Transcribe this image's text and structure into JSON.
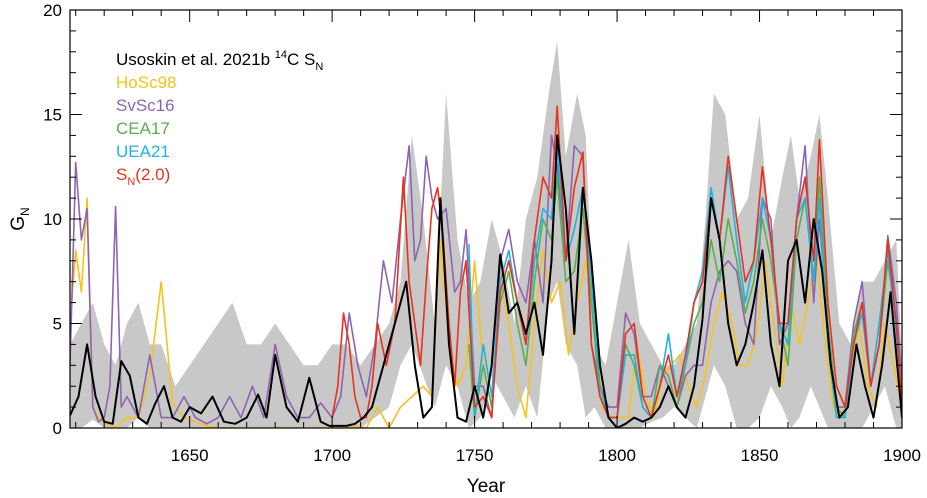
{
  "chart_data": {
    "type": "line",
    "xlabel": "Year",
    "ylabel_main": "G",
    "ylabel_sub": "N",
    "xlim": [
      1608,
      1900
    ],
    "ylim": [
      0,
      20
    ],
    "x_ticks": [
      1650,
      1700,
      1750,
      1800,
      1850,
      1900
    ],
    "y_ticks": [
      0,
      5,
      10,
      15,
      20
    ],
    "grid": false,
    "legend_placement": "top-left",
    "band": {
      "color": "#c8c8c8",
      "x": [
        1608,
        1612,
        1616,
        1620,
        1624,
        1628,
        1632,
        1636,
        1640,
        1645,
        1650,
        1655,
        1660,
        1665,
        1670,
        1675,
        1680,
        1685,
        1690,
        1695,
        1700,
        1705,
        1710,
        1715,
        1720,
        1724,
        1728,
        1732,
        1736,
        1740,
        1744,
        1748,
        1752,
        1756,
        1760,
        1764,
        1768,
        1772,
        1776,
        1779,
        1782,
        1786,
        1789,
        1792,
        1796,
        1800,
        1804,
        1808,
        1812,
        1816,
        1820,
        1824,
        1828,
        1831,
        1834,
        1838,
        1842,
        1846,
        1850,
        1854,
        1858,
        1861,
        1864,
        1868,
        1871,
        1874,
        1878,
        1882,
        1886,
        1890,
        1894,
        1898,
        1900
      ],
      "lower": [
        0,
        0,
        0.4,
        0,
        0,
        0,
        0.5,
        0,
        0,
        0,
        0,
        0,
        0,
        0,
        0,
        0,
        0,
        0,
        0,
        0,
        0,
        0,
        0,
        0.5,
        1,
        3,
        4,
        2.5,
        1,
        3,
        2,
        0,
        0.5,
        2.5,
        1.5,
        0.5,
        2,
        0.5,
        6,
        7,
        4,
        3,
        0.5,
        1,
        0,
        0,
        0,
        0,
        0.3,
        0.5,
        1,
        0.5,
        0,
        1.5,
        3,
        2,
        0,
        0,
        0.5,
        2,
        1,
        0,
        0.5,
        2,
        1,
        0,
        0,
        0,
        0,
        1,
        2,
        0,
        0
      ],
      "upper": [
        4,
        5,
        6,
        4,
        3,
        5,
        6,
        4,
        4,
        2,
        3,
        4,
        5,
        6,
        4,
        4,
        5,
        4,
        3,
        3,
        4,
        4,
        3,
        4,
        5,
        7,
        14,
        10,
        5,
        16,
        9,
        6,
        7,
        10,
        8,
        5,
        10,
        12,
        16,
        18.5,
        13,
        16,
        14,
        4,
        3,
        6,
        9,
        5,
        4,
        3,
        3,
        4,
        5,
        10,
        16,
        15,
        10,
        11,
        15,
        9,
        12,
        14,
        11,
        13,
        15,
        11,
        5,
        4,
        7,
        7,
        8,
        9,
        3
      ]
    },
    "series": [
      {
        "name": "Usoskin et al. 2021b ",
        "name_sup": "14",
        "name_rest": "C S",
        "name_sub": "N",
        "color": "#000000",
        "x": [
          1608,
          1611,
          1614,
          1617,
          1620,
          1623,
          1626,
          1629,
          1632,
          1635,
          1638,
          1641,
          1644,
          1647,
          1650,
          1654,
          1658,
          1662,
          1666,
          1670,
          1674,
          1677,
          1680,
          1684,
          1688,
          1692,
          1696,
          1699,
          1702,
          1705,
          1708,
          1711,
          1714,
          1717,
          1720,
          1723,
          1726,
          1729,
          1732,
          1735,
          1738,
          1741,
          1744,
          1747,
          1750,
          1753,
          1756,
          1759,
          1762,
          1765,
          1768,
          1771,
          1774,
          1777,
          1779,
          1782,
          1785,
          1788,
          1791,
          1794,
          1797,
          1800,
          1803,
          1806,
          1809,
          1812,
          1815,
          1818,
          1821,
          1824,
          1827,
          1830,
          1833,
          1836,
          1839,
          1842,
          1845,
          1848,
          1851,
          1854,
          1857,
          1860,
          1863,
          1866,
          1869,
          1872,
          1875,
          1878,
          1881,
          1884,
          1887,
          1890,
          1893,
          1896,
          1900
        ],
        "y": [
          0.6,
          1.5,
          4,
          1.5,
          0.3,
          0.2,
          3.2,
          2.5,
          0.5,
          0.2,
          1.2,
          2,
          0.5,
          0.3,
          1,
          0.7,
          1.5,
          0.3,
          0.2,
          0.5,
          1.6,
          0.5,
          3.5,
          1,
          0.3,
          2.4,
          0.3,
          0.1,
          0.1,
          0.1,
          0.2,
          0.5,
          1,
          2.5,
          4,
          5.5,
          7,
          3,
          0.5,
          1,
          11,
          4,
          0.5,
          0.3,
          2,
          0.5,
          3,
          8.3,
          5.5,
          6,
          4.5,
          6,
          3.5,
          8,
          14,
          10.5,
          4.5,
          11.5,
          8,
          3,
          0.5,
          0,
          0.2,
          0.5,
          0.3,
          0.5,
          1,
          2,
          1,
          0.5,
          2,
          5.2,
          11,
          9,
          5,
          3,
          4,
          6,
          8.5,
          4,
          2,
          8,
          9,
          6,
          10,
          7.5,
          3,
          0.5,
          1,
          4,
          2,
          0.5,
          3,
          6.5,
          0.5
        ]
      },
      {
        "name": "HoSc98",
        "color": "#f7c21a",
        "x": [
          1608,
          1610,
          1612,
          1614,
          1616,
          1618,
          1620,
          1624,
          1628,
          1632,
          1636,
          1640,
          1644,
          1648,
          1652,
          1656,
          1660,
          1664,
          1668,
          1672,
          1676,
          1680,
          1684,
          1688,
          1692,
          1696,
          1700,
          1704,
          1708,
          1712,
          1716,
          1720,
          1724,
          1728,
          1732,
          1735,
          1738,
          1741,
          1744,
          1747,
          1750,
          1753,
          1756,
          1759,
          1762,
          1765,
          1768,
          1771,
          1774,
          1777,
          1780,
          1783,
          1786,
          1789,
          1792,
          1795,
          1798,
          1801,
          1804,
          1807,
          1810,
          1813,
          1816,
          1819,
          1822,
          1825,
          1828,
          1831,
          1834,
          1837,
          1840,
          1843,
          1846,
          1849,
          1852,
          1855,
          1858,
          1861,
          1864,
          1867,
          1870,
          1873,
          1876,
          1879,
          1882,
          1885,
          1888,
          1891,
          1894,
          1897,
          1900
        ],
        "y": [
          5,
          8.5,
          6.5,
          11,
          1,
          0.5,
          0.2,
          0,
          0.5,
          0.5,
          2.5,
          7,
          1.2,
          0.5,
          0.3,
          0.1,
          0,
          0,
          0,
          0,
          0,
          0,
          0,
          0,
          0,
          0,
          0,
          0,
          0.1,
          0,
          1,
          0,
          1,
          1.5,
          2,
          1.5,
          9,
          4,
          2,
          3,
          8,
          3,
          1,
          7,
          5,
          2,
          0.5,
          5,
          8.5,
          6,
          7,
          3.5,
          6,
          8,
          6,
          1,
          0.5,
          0.5,
          0.5,
          4,
          1.5,
          0.5,
          2.5,
          3,
          3.5,
          2,
          1,
          2.5,
          5,
          6.5,
          5.2,
          3,
          3,
          4.5,
          8,
          5,
          2,
          6,
          4,
          6,
          8.5,
          4,
          1,
          0.5,
          3,
          5,
          2,
          1,
          5,
          3,
          1
        ]
      },
      {
        "name": "SvSc16",
        "color": "#8e64b0",
        "x": [
          1608,
          1610,
          1612,
          1614,
          1616,
          1618,
          1620,
          1622,
          1624,
          1626,
          1628,
          1632,
          1636,
          1640,
          1644,
          1648,
          1652,
          1656,
          1660,
          1664,
          1668,
          1672,
          1676,
          1680,
          1684,
          1688,
          1692,
          1696,
          1700,
          1703,
          1706,
          1709,
          1712,
          1715,
          1718,
          1721,
          1724,
          1727,
          1729,
          1731,
          1733,
          1735,
          1737,
          1740,
          1743,
          1745,
          1747,
          1750,
          1753,
          1756,
          1759,
          1762,
          1765,
          1768,
          1771,
          1774,
          1777,
          1779,
          1782,
          1785,
          1788,
          1791,
          1794,
          1797,
          1800,
          1803,
          1806,
          1809,
          1812,
          1815,
          1818,
          1821,
          1824,
          1827,
          1830,
          1833,
          1836,
          1839,
          1842,
          1845,
          1848,
          1851,
          1854,
          1857,
          1860,
          1863,
          1866,
          1869,
          1871,
          1874,
          1877,
          1880,
          1883,
          1886,
          1889,
          1892,
          1895,
          1898,
          1900
        ],
        "y": [
          3,
          12.7,
          9,
          10.5,
          1,
          0.3,
          0.5,
          2,
          10.6,
          1,
          1.5,
          0.5,
          3.5,
          0.5,
          0.5,
          1.5,
          0.5,
          0.2,
          0.5,
          1.5,
          0.5,
          2,
          0.5,
          4,
          1.5,
          0.5,
          0.5,
          1.2,
          0.5,
          1.5,
          5.5,
          3,
          1.5,
          4,
          8,
          6,
          10,
          13.5,
          8,
          9,
          13,
          11,
          10,
          10.5,
          6.5,
          7,
          9.5,
          2,
          2,
          0.5,
          8,
          9.5,
          7,
          6,
          9,
          6,
          14,
          12.5,
          8,
          13.5,
          13,
          4,
          2,
          1,
          1,
          5.5,
          4.5,
          1.5,
          1.5,
          3,
          2,
          1,
          2.5,
          3,
          3,
          6,
          7.5,
          8,
          7.5,
          5,
          4,
          11,
          10,
          4,
          5,
          10,
          13.5,
          6,
          10,
          5,
          1,
          1,
          5,
          7,
          2,
          4,
          9.2,
          6,
          2
        ]
      },
      {
        "name": "CEA17",
        "color": "#55b04e",
        "x": [
          1748,
          1750,
          1753,
          1756,
          1759,
          1762,
          1765,
          1768,
          1771,
          1774,
          1777,
          1779,
          1782,
          1785,
          1788,
          1791,
          1794,
          1797,
          1800,
          1803,
          1806,
          1809,
          1812,
          1815,
          1818,
          1821,
          1824,
          1827,
          1830,
          1833,
          1836,
          1839,
          1842,
          1845,
          1848,
          1851,
          1854,
          1857,
          1860,
          1863,
          1866,
          1869,
          1871,
          1874,
          1877,
          1880,
          1883,
          1886,
          1889,
          1892,
          1895,
          1898,
          1900
        ],
        "y": [
          4,
          0.5,
          3,
          1,
          6,
          7.5,
          5,
          3,
          7,
          10,
          9,
          12,
          7,
          7.5,
          10.5,
          6,
          1.5,
          0.5,
          0.5,
          4,
          3,
          1,
          0.5,
          3,
          2.5,
          1,
          3,
          5,
          6,
          9,
          7,
          10,
          8,
          5.5,
          7,
          10,
          8,
          5,
          3,
          9,
          11,
          7,
          12,
          5,
          1,
          0.5,
          4.5,
          6,
          2,
          4,
          8,
          5,
          1.5
        ]
      },
      {
        "name": "UEA21",
        "color": "#1fb2e4",
        "x": [
          1748,
          1750,
          1753,
          1756,
          1759,
          1762,
          1765,
          1768,
          1771,
          1774,
          1777,
          1779,
          1782,
          1785,
          1788,
          1791,
          1794,
          1797,
          1800,
          1803,
          1806,
          1809,
          1812,
          1815,
          1818,
          1821,
          1824,
          1827,
          1830,
          1833,
          1836,
          1839,
          1842,
          1845,
          1848,
          1851,
          1854,
          1857,
          1860,
          1863,
          1866,
          1869,
          1871,
          1874,
          1877,
          1880,
          1883,
          1886,
          1889,
          1892,
          1895,
          1898,
          1900
        ],
        "y": [
          8.8,
          0.5,
          4,
          1.5,
          7,
          8.5,
          6,
          4,
          8,
          10.5,
          10,
          13.5,
          8,
          9.5,
          11.5,
          7,
          2,
          0.5,
          0.5,
          3.5,
          3.5,
          1,
          0.5,
          2,
          4.5,
          1.5,
          3,
          6,
          7.5,
          11.5,
          9,
          12.5,
          9,
          6,
          8,
          11,
          9,
          5,
          4,
          10,
          11,
          7,
          11,
          4,
          0.5,
          0.5,
          4,
          5.5,
          2,
          5,
          8.5,
          4.5,
          1.5
        ]
      },
      {
        "name": "S",
        "name_sub": "N",
        "name_rest": "(2.0)",
        "color": "#e8321e",
        "x": [
          1700,
          1702,
          1704,
          1706,
          1708,
          1710,
          1712,
          1714,
          1716,
          1719,
          1722,
          1725,
          1727,
          1729,
          1731,
          1733,
          1735,
          1737,
          1739,
          1741,
          1743,
          1745,
          1747,
          1750,
          1753,
          1756,
          1759,
          1762,
          1765,
          1768,
          1771,
          1774,
          1777,
          1779,
          1782,
          1785,
          1788,
          1791,
          1794,
          1797,
          1800,
          1803,
          1806,
          1809,
          1812,
          1815,
          1818,
          1821,
          1824,
          1827,
          1830,
          1833,
          1836,
          1839,
          1842,
          1845,
          1848,
          1851,
          1854,
          1857,
          1860,
          1863,
          1866,
          1869,
          1871,
          1874,
          1877,
          1880,
          1883,
          1886,
          1889,
          1892,
          1895,
          1898,
          1900
        ],
        "y": [
          0.5,
          2,
          5.5,
          4,
          1.5,
          0.5,
          0.5,
          2,
          5,
          3,
          5,
          12,
          7,
          5,
          3,
          7,
          10.5,
          11.5,
          9,
          5,
          2,
          6.5,
          8,
          1,
          1.5,
          0.5,
          6.5,
          8,
          6,
          4,
          9,
          12,
          11,
          15.4,
          8,
          11.5,
          13.2,
          4,
          1.5,
          0.5,
          0.5,
          4.5,
          5,
          1.5,
          0.5,
          2,
          3.5,
          1.5,
          3.5,
          6,
          7,
          11,
          9,
          13,
          10,
          7,
          8,
          12.5,
          9,
          5,
          5,
          10,
          12,
          8,
          13.8,
          6,
          2,
          1,
          4,
          6,
          2,
          4,
          9,
          5,
          1
        ]
      }
    ]
  }
}
